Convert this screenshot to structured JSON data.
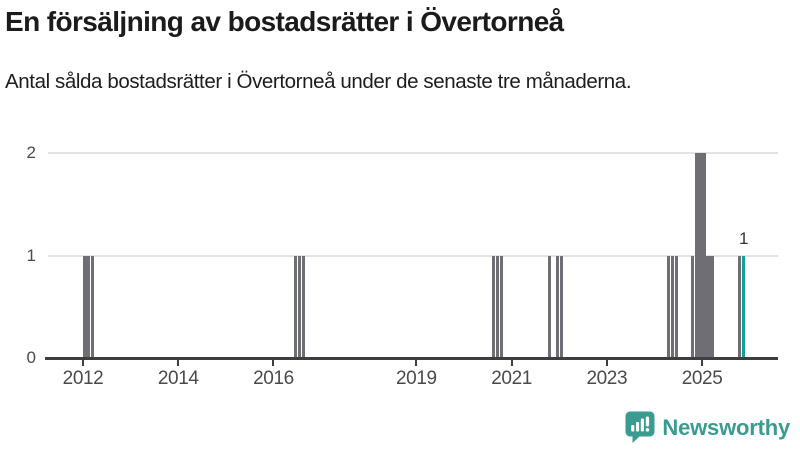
{
  "chart_data": {
    "type": "bar",
    "title": "En försäljning av bostadsrätter i Övertorneå",
    "subtitle": "Antal sålda bostadsrätter i Övertorneå under de senaste tre månaderna.",
    "xlabel": "",
    "ylabel": "",
    "ylim": [
      0,
      2
    ],
    "yticks": [
      0,
      1,
      2
    ],
    "xticks": [
      2012,
      2014,
      2016,
      2019,
      2021,
      2023,
      2025
    ],
    "xlim_years": [
      2011.25,
      2026.6
    ],
    "grid": "horizontal",
    "legend": "none",
    "colors": {
      "bar": "#6e6e74",
      "highlight": "#12a09b"
    },
    "bars": [
      {
        "month": "2012-01",
        "value": 1
      },
      {
        "month": "2012-02",
        "value": 1
      },
      {
        "month": "2012-03",
        "value": 1
      },
      {
        "month": "2016-06",
        "value": 1
      },
      {
        "month": "2016-07",
        "value": 1
      },
      {
        "month": "2016-08",
        "value": 1
      },
      {
        "month": "2020-08",
        "value": 1
      },
      {
        "month": "2020-09",
        "value": 1
      },
      {
        "month": "2020-10",
        "value": 1
      },
      {
        "month": "2021-10",
        "value": 1
      },
      {
        "month": "2021-12",
        "value": 1
      },
      {
        "month": "2022-01",
        "value": 1
      },
      {
        "month": "2024-04",
        "value": 1
      },
      {
        "month": "2024-05",
        "value": 1
      },
      {
        "month": "2024-06",
        "value": 1
      },
      {
        "month": "2024-10",
        "value": 1
      },
      {
        "month": "2024-11",
        "value": 2
      },
      {
        "month": "2024-12",
        "value": 2
      },
      {
        "month": "2025-01",
        "value": 2
      },
      {
        "month": "2025-02",
        "value": 1
      },
      {
        "month": "2025-03",
        "value": 1
      },
      {
        "month": "2025-10",
        "value": 1
      },
      {
        "month": "2025-11",
        "value": 1,
        "highlight": true,
        "label": "1"
      }
    ]
  },
  "branding": {
    "wordmark": "Newsworthy",
    "icon": "newsworthy-speech-bubble-chart-icon",
    "color": "#3a9b90"
  }
}
